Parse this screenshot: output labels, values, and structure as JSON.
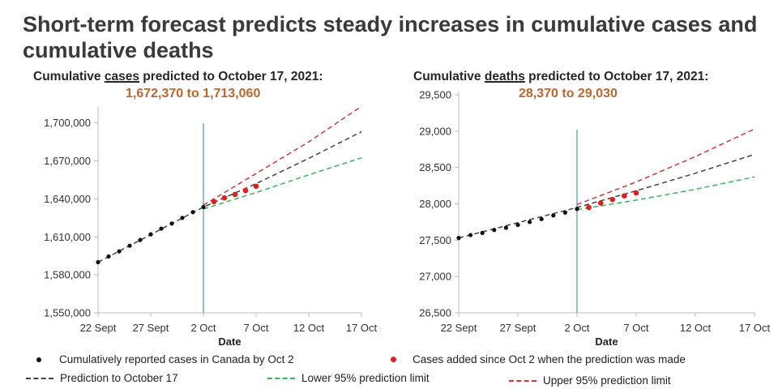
{
  "title": "Short-term forecast predicts steady increases in cumulative cases and cumulative deaths",
  "colors": {
    "reported": "#111111",
    "added": "#e01f1f",
    "prediction": "#444444",
    "lower": "#3cb35a",
    "upper": "#d0393a",
    "vline": "#5b9ec4",
    "range_text": "#c0662c"
  },
  "legend": {
    "reported": "Cumulatively  reported cases in Canada by Oct 2",
    "added": "Cases added since Oct 2 when the prediction was made",
    "prediction": "Prediction to October 17",
    "lower": "Lower 95% prediction limit",
    "upper": "Upper 95% prediction limit"
  },
  "chart_data": [
    {
      "type": "line",
      "subtitle_pre": "Cumulative ",
      "subtitle_key": "cases",
      "subtitle_post": " predicted to October 17, 2021:",
      "range_text": "1,672,370 to 1,713,060",
      "xlabel": "Date",
      "ylabel": "",
      "x_tick_labels": [
        "22 Sept",
        "27 Sept",
        "2 Oct",
        "7 Oct",
        "12 Oct",
        "17 Oct"
      ],
      "y_tick_labels": [
        "1,550,000",
        "1,580,000",
        "1,610,000",
        "1,640,000",
        "1,670,000",
        "1,700,000"
      ],
      "xlim": [
        0,
        25
      ],
      "ylim": [
        1550000,
        1710000
      ],
      "prediction_start_day": 10,
      "reported": {
        "x": [
          0,
          1,
          2,
          3,
          4,
          5,
          6,
          7,
          8,
          9,
          10
        ],
        "y": [
          1590000,
          1594500,
          1598500,
          1603000,
          1607500,
          1612000,
          1616500,
          1620500,
          1625000,
          1629500,
          1633500
        ]
      },
      "added": {
        "x": [
          11,
          12,
          13,
          14,
          15
        ],
        "y": [
          1637800,
          1640800,
          1643500,
          1646500,
          1650000
        ]
      },
      "series": [
        {
          "name": "Prediction to October 17",
          "x": [
            0,
            10,
            15,
            20,
            25
          ],
          "y": [
            1590000,
            1633500,
            1652000,
            1672000,
            1693000
          ]
        },
        {
          "name": "Lower 95% prediction limit",
          "x": [
            10,
            15,
            20,
            25
          ],
          "y": [
            1632000,
            1645000,
            1659000,
            1672370
          ]
        },
        {
          "name": "Upper 95% prediction limit",
          "x": [
            10,
            15,
            20,
            25
          ],
          "y": [
            1635000,
            1660000,
            1685000,
            1713060
          ]
        }
      ]
    },
    {
      "type": "line",
      "subtitle_pre": "Cumulative ",
      "subtitle_key": "deaths",
      "subtitle_post": " predicted to October 17, 2021:",
      "range_text": "28,370 to 29,030",
      "xlabel": "Date",
      "ylabel": "",
      "x_tick_labels": [
        "22 Sept",
        "27 Sept",
        "2 Oct",
        "7 Oct",
        "12 Oct",
        "17 Oct"
      ],
      "y_tick_labels": [
        "26,500",
        "27,000",
        "27,500",
        "28,000",
        "28,500",
        "29,000",
        "29,500"
      ],
      "xlim": [
        0,
        25
      ],
      "ylim": [
        26500,
        29500
      ],
      "prediction_start_day": 10,
      "reported": {
        "x": [
          0,
          1,
          2,
          3,
          4,
          5,
          6,
          7,
          8,
          9,
          10
        ],
        "y": [
          27530,
          27570,
          27600,
          27640,
          27670,
          27710,
          27750,
          27790,
          27840,
          27880,
          27930
        ]
      },
      "added": {
        "x": [
          11,
          12,
          13,
          14,
          15
        ],
        "y": [
          27950,
          28010,
          28060,
          28110,
          28150
        ]
      },
      "series": [
        {
          "name": "Prediction to October 17",
          "x": [
            0,
            10,
            15,
            20,
            25
          ],
          "y": [
            27530,
            27950,
            28180,
            28420,
            28680
          ]
        },
        {
          "name": "Lower 95% prediction limit",
          "x": [
            10,
            15,
            20,
            25
          ],
          "y": [
            27920,
            28050,
            28200,
            28370
          ]
        },
        {
          "name": "Upper 95% prediction limit",
          "x": [
            10,
            15,
            20,
            25
          ],
          "y": [
            27990,
            28300,
            28650,
            29030
          ]
        }
      ]
    }
  ]
}
